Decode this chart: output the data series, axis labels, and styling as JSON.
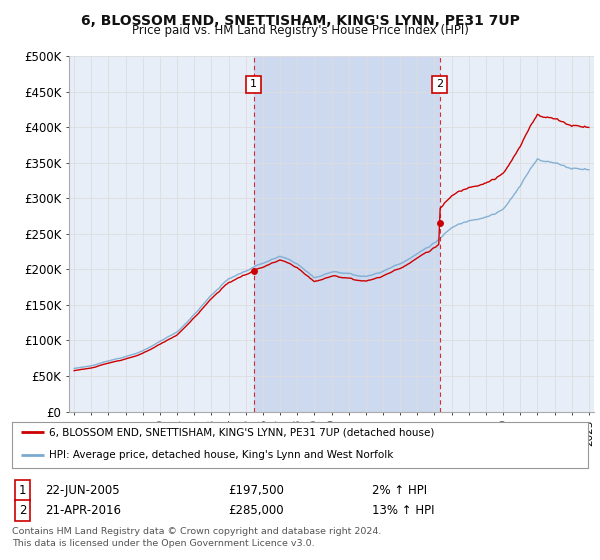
{
  "title": "6, BLOSSOM END, SNETTISHAM, KING'S LYNN, PE31 7UP",
  "subtitle": "Price paid vs. HM Land Registry's House Price Index (HPI)",
  "background_color": "#ffffff",
  "plot_bg_color": "#e8eef8",
  "shade_color": "#ccd9ee",
  "grid_color": "#cccccc",
  "ylim": [
    0,
    500000
  ],
  "yticks": [
    0,
    50000,
    100000,
    150000,
    200000,
    250000,
    300000,
    350000,
    400000,
    450000,
    500000
  ],
  "ytick_labels": [
    "£0",
    "£50K",
    "£100K",
    "£150K",
    "£200K",
    "£250K",
    "£300K",
    "£350K",
    "£400K",
    "£450K",
    "£500K"
  ],
  "sale1_date": 2005.47,
  "sale1_price": 197500,
  "sale2_date": 2016.3,
  "sale2_price": 285000,
  "legend_line1": "6, BLOSSOM END, SNETTISHAM, KING'S LYNN, PE31 7UP (detached house)",
  "legend_line2": "HPI: Average price, detached house, King's Lynn and West Norfolk",
  "footer1": "Contains HM Land Registry data © Crown copyright and database right 2024.",
  "footer2": "This data is licensed under the Open Government Licence v3.0.",
  "row1": [
    "1",
    "22-JUN-2005",
    "£197,500",
    "2% ↑ HPI"
  ],
  "row2": [
    "2",
    "21-APR-2016",
    "£285,000",
    "13% ↑ HPI"
  ],
  "hpi_color": "#7aaad0",
  "price_color": "#cc0000",
  "marker_line_color": "#cc0000",
  "xlim_left": 1994.7,
  "xlim_right": 2025.3
}
